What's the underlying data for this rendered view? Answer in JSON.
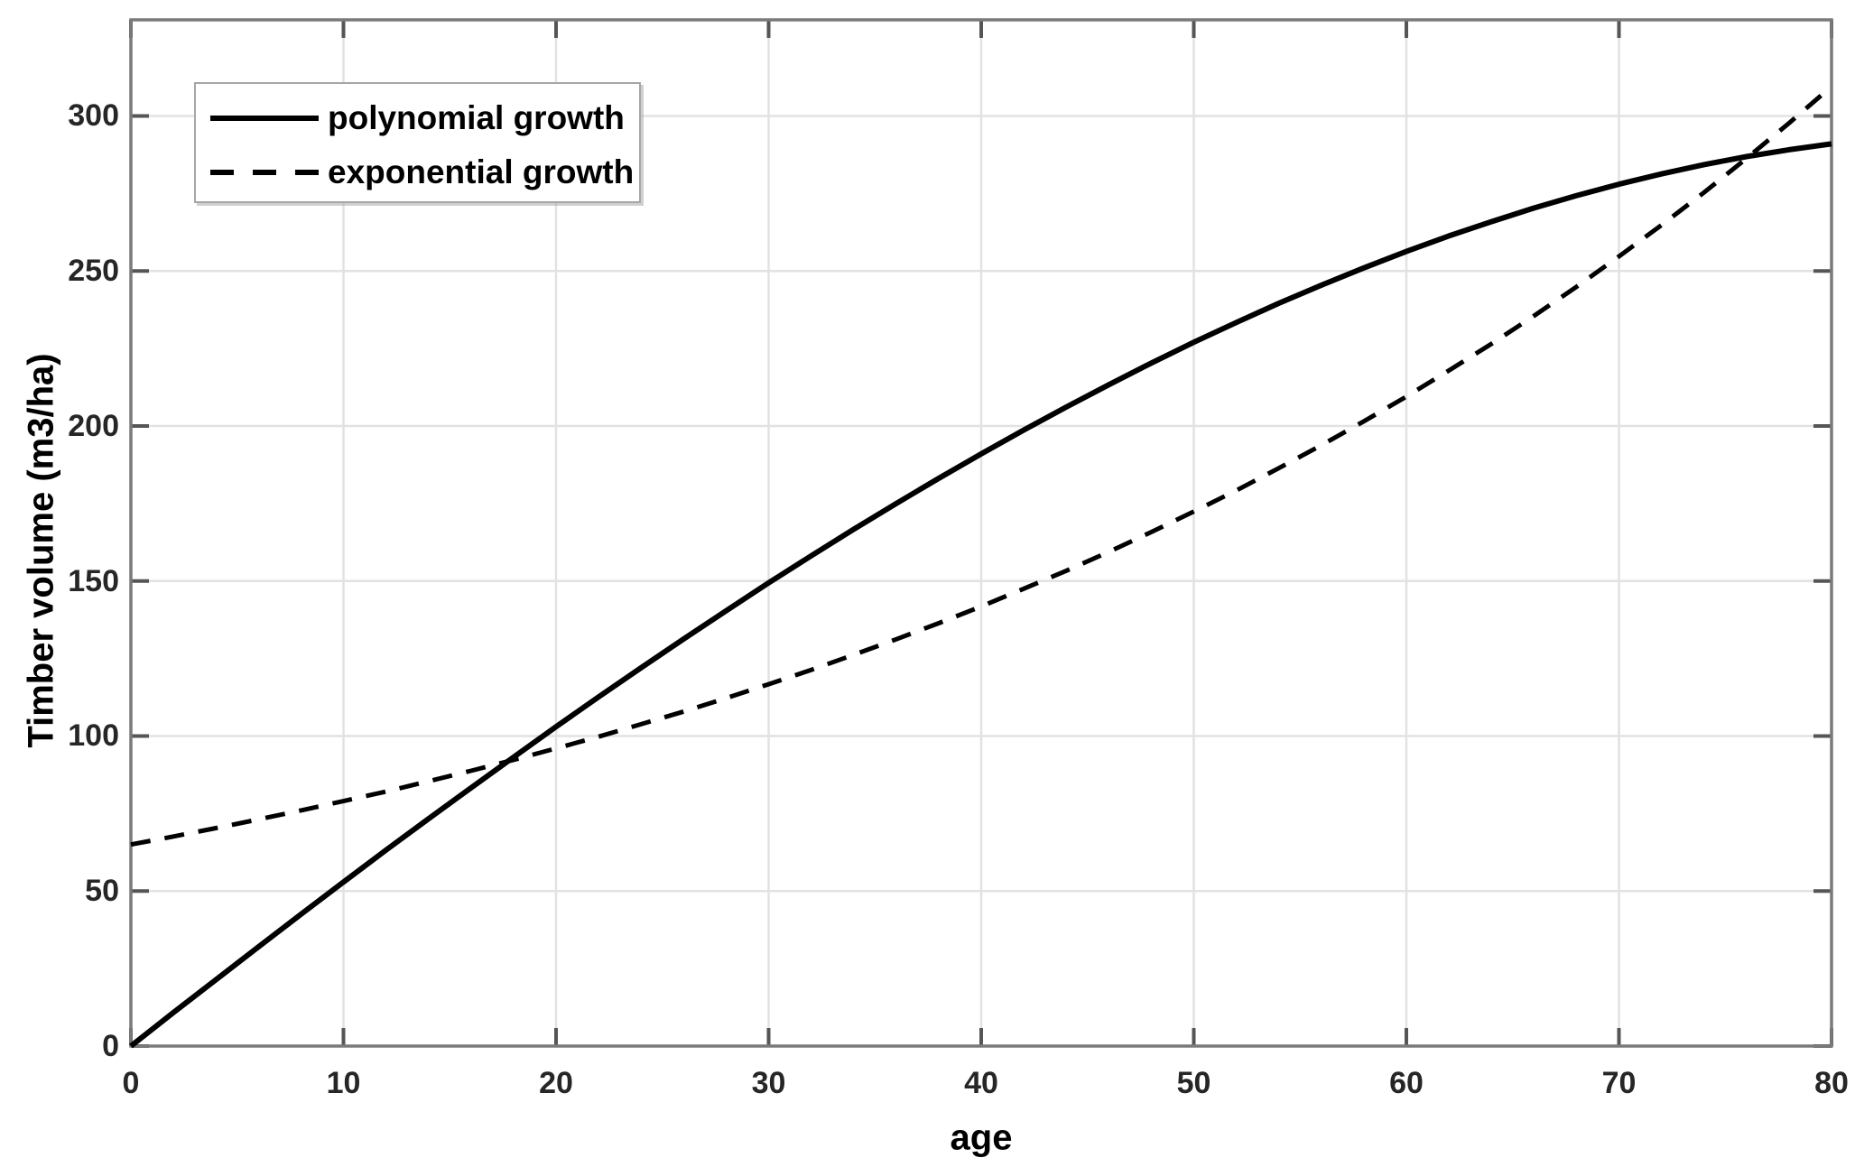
{
  "chart_data": {
    "type": "line",
    "title": "",
    "xlabel": "age",
    "ylabel": "Timber volume (m3/ha)",
    "xlim": [
      0,
      80
    ],
    "ylim": [
      0,
      331
    ],
    "xticks": [
      0,
      10,
      20,
      30,
      40,
      50,
      60,
      70,
      80
    ],
    "yticks": [
      0,
      50,
      100,
      150,
      200,
      250,
      300
    ],
    "grid": true,
    "legend_position": "top-left",
    "colors": {
      "line": "#000000",
      "grid": "#e2e2e2",
      "axis_box": "#7a7a7a",
      "tick_mark": "#555555",
      "tick_label": "#262626"
    },
    "series": [
      {
        "name": "polynomial growth",
        "style": "solid",
        "color": "#000000",
        "x": [
          0,
          2,
          4,
          6,
          8,
          10,
          12,
          14,
          16,
          18,
          20,
          22,
          24,
          26,
          28,
          30,
          32,
          34,
          36,
          38,
          40,
          42,
          44,
          46,
          48,
          50,
          52,
          54,
          56,
          58,
          60,
          62,
          64,
          66,
          68,
          70,
          72,
          74,
          76,
          78,
          80
        ],
        "y": [
          0,
          10.8,
          21.4,
          32.0,
          42.5,
          52.9,
          63.2,
          73.3,
          83.3,
          93.2,
          103.0,
          112.6,
          122.0,
          131.3,
          140.4,
          149.4,
          158.1,
          166.7,
          175.0,
          183.1,
          191.0,
          198.7,
          206.1,
          213.3,
          220.3,
          227.0,
          233.4,
          239.6,
          245.4,
          251.0,
          256.3,
          261.3,
          265.9,
          270.3,
          274.3,
          278.0,
          281.3,
          284.3,
          286.9,
          289.1,
          291.0
        ]
      },
      {
        "name": "exponential growth",
        "style": "dashed",
        "color": "#000000",
        "x": [
          0,
          2,
          4,
          6,
          8,
          10,
          12,
          14,
          16,
          18,
          20,
          22,
          24,
          26,
          28,
          30,
          32,
          34,
          36,
          38,
          40,
          42,
          44,
          46,
          48,
          50,
          52,
          54,
          56,
          58,
          60,
          62,
          64,
          66,
          68,
          70,
          72,
          74,
          76,
          78,
          80
        ],
        "y": [
          65.0,
          67.6,
          70.3,
          73.1,
          76.0,
          79.0,
          82.1,
          85.4,
          88.8,
          92.3,
          96.0,
          99.8,
          103.8,
          107.9,
          112.2,
          116.7,
          121.3,
          126.2,
          131.2,
          136.4,
          141.8,
          147.5,
          153.3,
          159.4,
          165.8,
          172.4,
          179.2,
          186.4,
          193.8,
          201.5,
          209.5,
          217.9,
          226.5,
          235.5,
          244.9,
          254.7,
          264.8,
          275.3,
          286.3,
          297.7,
          309.5
        ]
      }
    ]
  }
}
